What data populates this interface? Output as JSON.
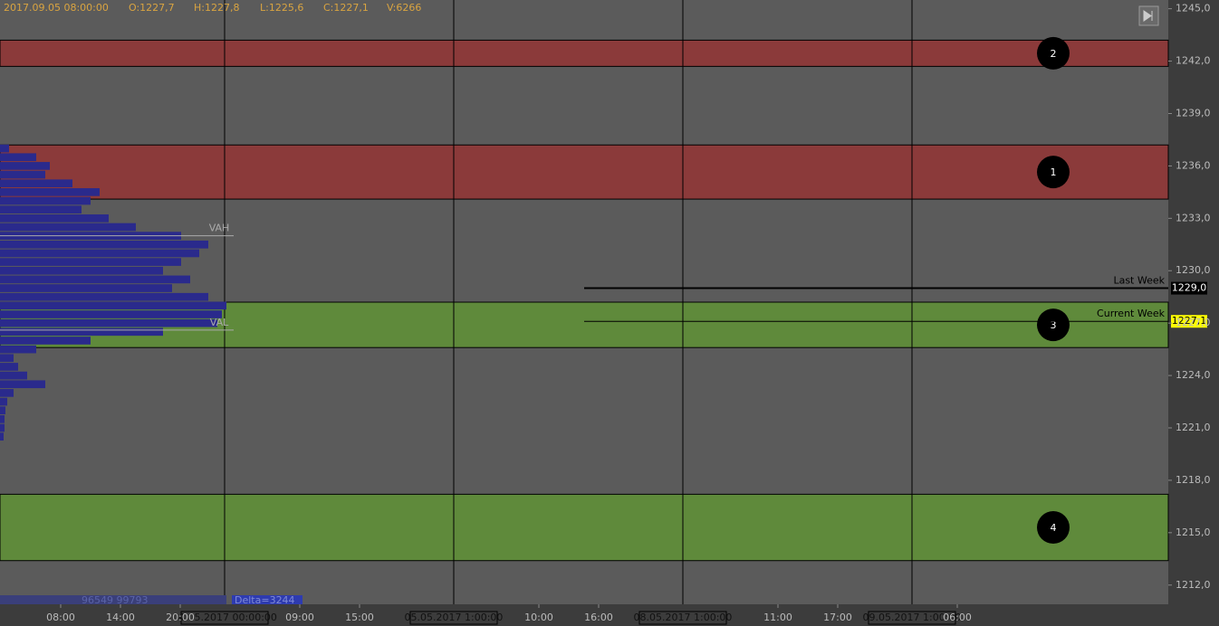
{
  "chart_data": {
    "type": "market-profile",
    "header": [
      "2017.09.05 08:00:00",
      "O:1227,7",
      "H:1227,8",
      "L:1225,6",
      "C:1227,1",
      "V:6266"
    ],
    "ylim": [
      1210.9,
      1245.5
    ],
    "yticks": [
      {
        "value": 1245,
        "label": "1245,0"
      },
      {
        "value": 1242,
        "label": "1242,0"
      },
      {
        "value": 1239,
        "label": "1239,0"
      },
      {
        "value": 1236,
        "label": "1236,0"
      },
      {
        "value": 1233,
        "label": "1233,0"
      },
      {
        "value": 1230,
        "label": "1230,0"
      },
      {
        "value": 1227,
        "label": "1227,0"
      },
      {
        "value": 1224,
        "label": "1224,0"
      },
      {
        "value": 1221,
        "label": "1221,0"
      },
      {
        "value": 1218,
        "label": "1218,0"
      },
      {
        "value": 1215,
        "label": "1215,0"
      },
      {
        "value": 1212,
        "label": "1212,0"
      }
    ],
    "categories": [
      "08:00",
      "14:00",
      "20:00",
      null,
      "09:00",
      "15:00",
      null,
      null,
      "10:00",
      "16:00",
      null,
      null,
      "11:00",
      "17:00",
      null,
      "06:00"
    ],
    "days": [
      "04.05.2017 00:00:00",
      "05.05.2017 1:00:00",
      "08.05.2017 1:00:00",
      "09.05.2017 1:00:00"
    ],
    "zones": [
      {
        "label": "2",
        "range": [
          1241.7,
          1243.2
        ],
        "color": "#8b3a3a"
      },
      {
        "label": "1",
        "range": [
          1234.1,
          1237.2
        ],
        "color": "#8b3a3a"
      },
      {
        "label": "3",
        "range": [
          1225.6,
          1228.2
        ],
        "color": "#5f8a3b"
      },
      {
        "label": "4",
        "range": [
          1213.4,
          1217.2
        ],
        "color": "#5f8a3b"
      }
    ],
    "levels": [
      {
        "name": "Last Week",
        "value": 1229.0,
        "label": "1229,0",
        "color": "#000000"
      },
      {
        "name": "Current Week",
        "value": 1227.1,
        "label": "1227,1",
        "color": "#ffff00"
      }
    ],
    "value_area": [
      {
        "name": "VAH",
        "value": 1232.0
      },
      {
        "name": "VAL",
        "value": 1226.6
      }
    ],
    "profile": {
      "color": "#2a2a8c",
      "prices": [
        1237.0,
        1236.5,
        1236.0,
        1235.5,
        1235.0,
        1234.5,
        1234.0,
        1233.5,
        1233.0,
        1232.5,
        1232.0,
        1231.5,
        1231.0,
        1230.5,
        1230.0,
        1229.5,
        1229.0,
        1228.5,
        1228.0,
        1227.5,
        1227.0,
        1226.5,
        1226.0,
        1225.5,
        1225.0,
        1224.5,
        1224.0,
        1223.5,
        1223.0,
        1222.5,
        1222.0,
        1221.5,
        1221.0,
        1220.5
      ],
      "values": [
        10,
        40,
        55,
        50,
        80,
        110,
        100,
        90,
        120,
        150,
        200,
        230,
        220,
        200,
        180,
        210,
        190,
        230,
        250,
        245,
        240,
        180,
        100,
        40,
        15,
        20,
        30,
        50,
        15,
        8,
        6,
        5,
        5,
        4
      ]
    },
    "footer": [
      "96549 99793",
      "Delta=3244"
    ]
  }
}
